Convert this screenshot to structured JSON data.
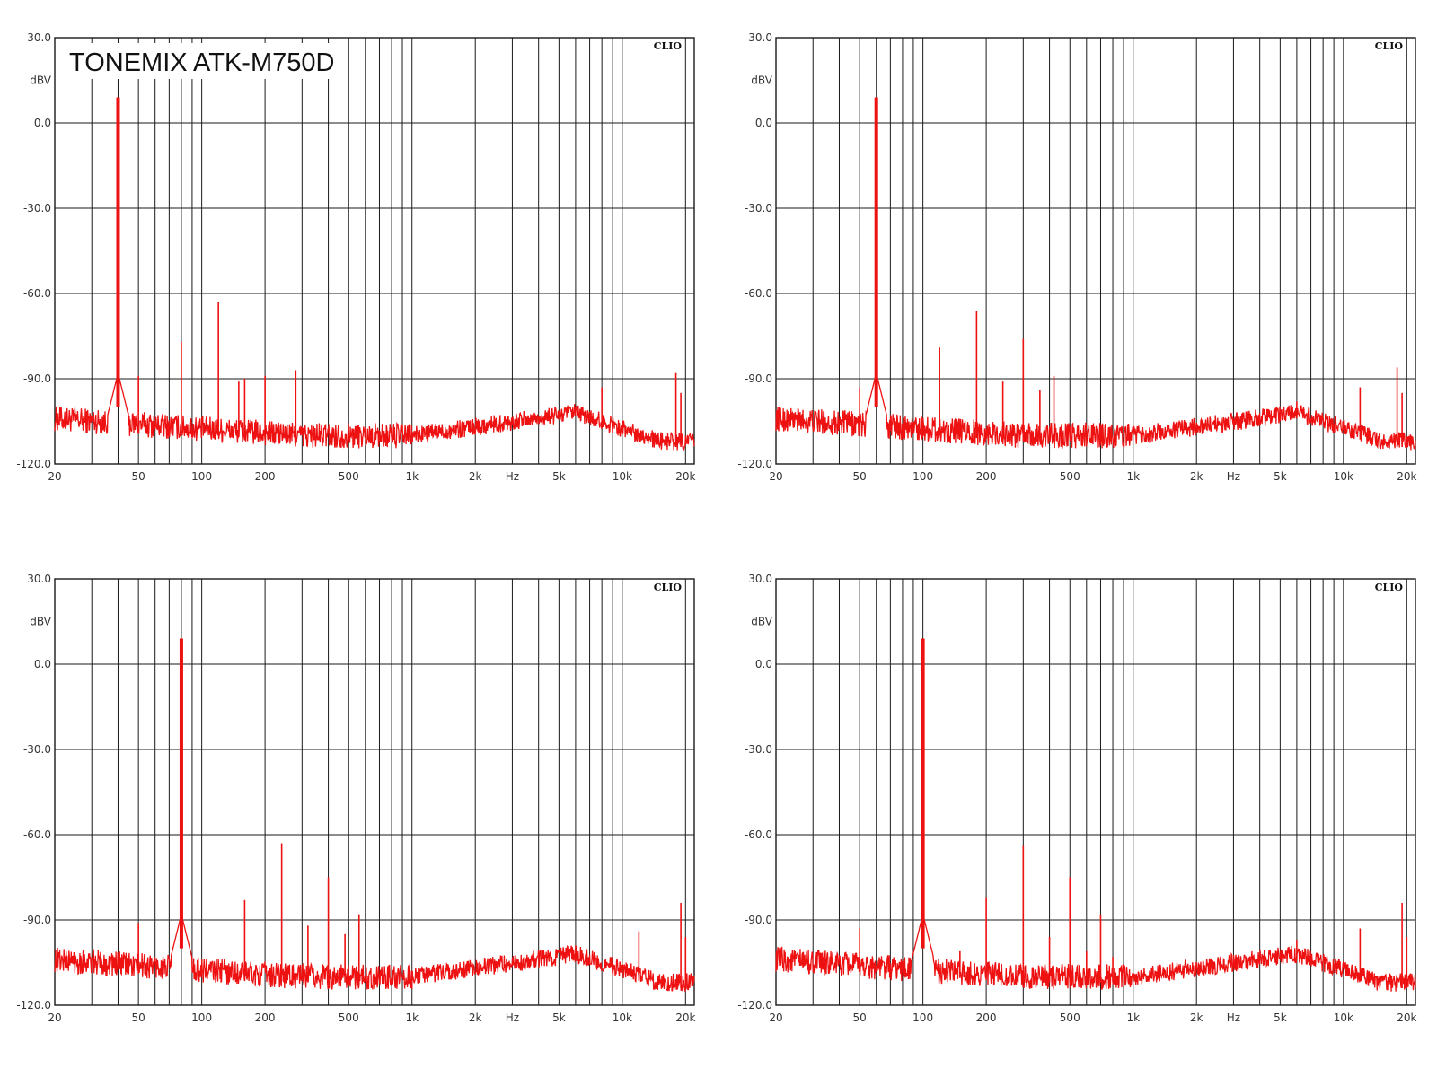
{
  "chart_data": [
    {
      "type": "line",
      "title": "TONEMIX ATK-M750D",
      "brand": "CLIO",
      "yunit": "dBV",
      "xunit": "Hz",
      "xscale": "log",
      "xlim": [
        20,
        22000
      ],
      "ylim": [
        -120,
        30
      ],
      "grid": true,
      "yticks": [
        "30.0",
        "0.0",
        "-30.0",
        "-60.0",
        "-90.0",
        "-120.0"
      ],
      "xticks": [
        "20",
        "50",
        "100",
        "200",
        "500",
        "1k",
        "2k",
        "5k",
        "10k",
        "20k"
      ],
      "series_color": "#ee1111",
      "fundamental": {
        "x": 40,
        "y": 9
      },
      "peaks": [
        {
          "x": 50,
          "y": -89
        },
        {
          "x": 80,
          "y": -77
        },
        {
          "x": 120,
          "y": -63
        },
        {
          "x": 150,
          "y": -91
        },
        {
          "x": 160,
          "y": -90
        },
        {
          "x": 200,
          "y": -89
        },
        {
          "x": 280,
          "y": -87
        },
        {
          "x": 8000,
          "y": -93
        },
        {
          "x": 18000,
          "y": -88
        },
        {
          "x": 19000,
          "y": -95
        }
      ]
    },
    {
      "type": "line",
      "title": "",
      "brand": "CLIO",
      "yunit": "dBV",
      "xunit": "Hz",
      "xscale": "log",
      "xlim": [
        20,
        22000
      ],
      "ylim": [
        -120,
        30
      ],
      "grid": true,
      "yticks": [
        "30.0",
        "0.0",
        "-30.0",
        "-60.0",
        "-90.0",
        "-120.0"
      ],
      "xticks": [
        "20",
        "50",
        "100",
        "200",
        "500",
        "1k",
        "2k",
        "5k",
        "10k",
        "20k"
      ],
      "series_color": "#ee1111",
      "fundamental": {
        "x": 60,
        "y": 9
      },
      "peaks": [
        {
          "x": 50,
          "y": -93
        },
        {
          "x": 120,
          "y": -79
        },
        {
          "x": 180,
          "y": -66
        },
        {
          "x": 240,
          "y": -91
        },
        {
          "x": 300,
          "y": -76
        },
        {
          "x": 360,
          "y": -94
        },
        {
          "x": 420,
          "y": -89
        },
        {
          "x": 6000,
          "y": -98
        },
        {
          "x": 12000,
          "y": -93
        },
        {
          "x": 18000,
          "y": -86
        },
        {
          "x": 19000,
          "y": -95
        }
      ]
    },
    {
      "type": "line",
      "title": "",
      "brand": "CLIO",
      "yunit": "dBV",
      "xunit": "Hz",
      "xscale": "log",
      "xlim": [
        20,
        22000
      ],
      "ylim": [
        -120,
        30
      ],
      "grid": true,
      "yticks": [
        "30.0",
        "0.0",
        "-30.0",
        "-60.0",
        "-90.0",
        "-120.0"
      ],
      "xticks": [
        "20",
        "50",
        "100",
        "200",
        "500",
        "1k",
        "2k",
        "5k",
        "10k",
        "20k"
      ],
      "series_color": "#ee1111",
      "fundamental": {
        "x": 80,
        "y": 9
      },
      "peaks": [
        {
          "x": 50,
          "y": -91
        },
        {
          "x": 160,
          "y": -83
        },
        {
          "x": 240,
          "y": -63
        },
        {
          "x": 320,
          "y": -92
        },
        {
          "x": 400,
          "y": -75
        },
        {
          "x": 480,
          "y": -95
        },
        {
          "x": 560,
          "y": -88
        },
        {
          "x": 6000,
          "y": -99
        },
        {
          "x": 12000,
          "y": -94
        },
        {
          "x": 19000,
          "y": -84
        },
        {
          "x": 20000,
          "y": -96
        }
      ]
    },
    {
      "type": "line",
      "title": "",
      "brand": "CLIO",
      "yunit": "dBV",
      "xunit": "Hz",
      "xscale": "log",
      "xlim": [
        20,
        22000
      ],
      "ylim": [
        -120,
        30
      ],
      "grid": true,
      "yticks": [
        "30.0",
        "0.0",
        "-30.0",
        "-60.0",
        "-90.0",
        "-120.0"
      ],
      "xticks": [
        "20",
        "50",
        "100",
        "200",
        "500",
        "1k",
        "2k",
        "5k",
        "10k",
        "20k"
      ],
      "series_color": "#ee1111",
      "fundamental": {
        "x": 100,
        "y": 9
      },
      "peaks": [
        {
          "x": 50,
          "y": -93
        },
        {
          "x": 150,
          "y": -101
        },
        {
          "x": 200,
          "y": -82
        },
        {
          "x": 300,
          "y": -64
        },
        {
          "x": 400,
          "y": -96
        },
        {
          "x": 500,
          "y": -75
        },
        {
          "x": 600,
          "y": -101
        },
        {
          "x": 700,
          "y": -88
        },
        {
          "x": 800,
          "y": -103
        },
        {
          "x": 6000,
          "y": -97
        },
        {
          "x": 12000,
          "y": -93
        },
        {
          "x": 19000,
          "y": -84
        },
        {
          "x": 20000,
          "y": -96
        }
      ]
    }
  ]
}
